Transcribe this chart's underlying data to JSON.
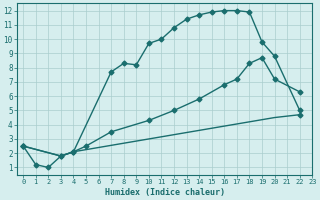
{
  "xlabel": "Humidex (Indice chaleur)",
  "bg_color": "#d6eeee",
  "grid_color": "#aacece",
  "line_color": "#1a6e6e",
  "xlim": [
    -0.5,
    23
  ],
  "ylim": [
    0.5,
    12.5
  ],
  "xticks": [
    0,
    1,
    2,
    3,
    4,
    5,
    6,
    7,
    8,
    9,
    10,
    11,
    12,
    13,
    14,
    15,
    16,
    17,
    18,
    19,
    20,
    21,
    22,
    23
  ],
  "yticks": [
    1,
    2,
    3,
    4,
    5,
    6,
    7,
    8,
    9,
    10,
    11,
    12
  ],
  "curve1_x": [
    0,
    1,
    2,
    3,
    4,
    7,
    8,
    9,
    10,
    11,
    12,
    13,
    14,
    15,
    16,
    17,
    18,
    19,
    20,
    22
  ],
  "curve1_y": [
    2.5,
    1.2,
    1.0,
    1.8,
    2.1,
    7.7,
    8.3,
    8.2,
    9.7,
    10.0,
    10.8,
    11.4,
    11.7,
    11.9,
    12.0,
    12.0,
    11.9,
    9.8,
    8.8,
    5.0
  ],
  "curve2_x": [
    0,
    3,
    4,
    5,
    7,
    10,
    12,
    14,
    16,
    17,
    18,
    19,
    20,
    22
  ],
  "curve2_y": [
    2.5,
    1.8,
    2.1,
    2.5,
    3.5,
    4.3,
    5.0,
    5.8,
    6.8,
    7.2,
    8.3,
    8.7,
    7.2,
    6.3
  ],
  "curve3_x": [
    0,
    3,
    4,
    6,
    8,
    10,
    12,
    14,
    16,
    18,
    20,
    22
  ],
  "curve3_y": [
    2.5,
    1.8,
    2.1,
    2.4,
    2.7,
    3.0,
    3.3,
    3.6,
    3.9,
    4.2,
    4.5,
    4.7
  ],
  "marker": "D",
  "markersize": 2.5,
  "linewidth": 1.0
}
